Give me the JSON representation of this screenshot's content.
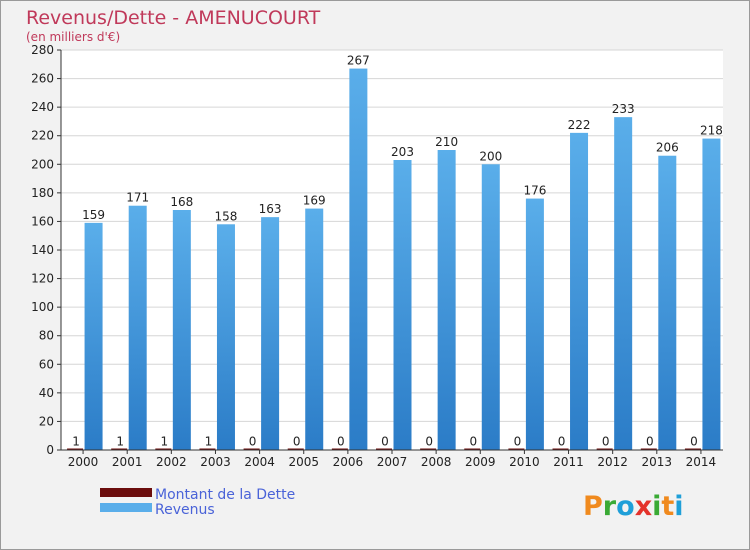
{
  "colors": {
    "background": "#f2f2f2",
    "plot_background": "#ffffff",
    "title": "#c0395a",
    "gridline": "#d6d6d6",
    "legend_text": "#4a63d8",
    "debt": "#6b0d0d",
    "revenue_light": "#5aaeea",
    "revenue_dark": "#2b7cc7"
  },
  "logo": {
    "text": "Proxiti",
    "letter_colors": [
      "#f08a1e",
      "#3aaa35",
      "#1f9fd8",
      "#e4322b",
      "#3aaa35",
      "#f08a1e",
      "#1f9fd8"
    ]
  },
  "chart_data": {
    "type": "bar",
    "title": "Revenus/Dette - AMENUCOURT",
    "subtitle": "(en milliers d'€)",
    "xlabel": "",
    "ylabel": "",
    "categories": [
      "2000",
      "2001",
      "2002",
      "2003",
      "2004",
      "2005",
      "2006",
      "2007",
      "2008",
      "2009",
      "2010",
      "2011",
      "2012",
      "2013",
      "2014"
    ],
    "series": [
      {
        "name": "Montant de la Dette",
        "color": "#6b0d0d",
        "values": [
          1,
          1,
          1,
          1,
          0,
          0,
          0,
          0,
          0,
          0,
          0,
          0,
          0,
          0,
          0
        ]
      },
      {
        "name": "Revenus",
        "color": "#5aaeea",
        "values": [
          159,
          171,
          168,
          158,
          163,
          169,
          267,
          203,
          210,
          200,
          176,
          222,
          233,
          206,
          218
        ]
      }
    ],
    "ylim": [
      0,
      280
    ],
    "yticks": [
      0,
      20,
      40,
      60,
      80,
      100,
      120,
      140,
      160,
      180,
      200,
      220,
      240,
      260,
      280
    ],
    "grid": true,
    "legend_position": "bottom-left"
  }
}
